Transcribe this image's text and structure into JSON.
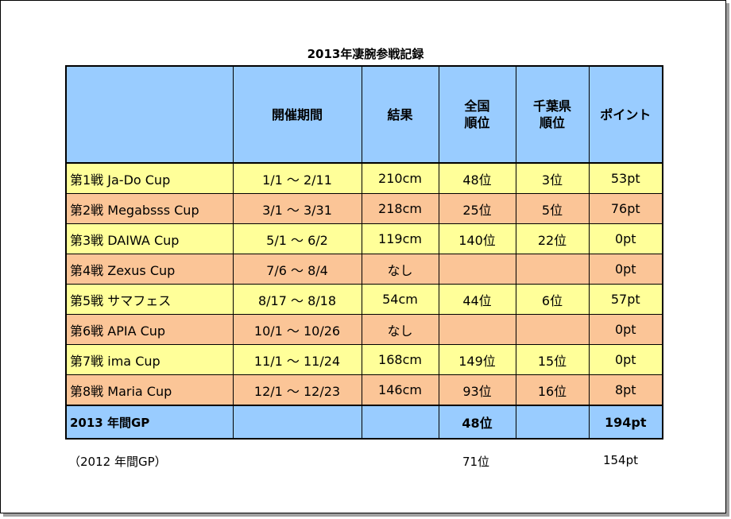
{
  "title": "2013年凄腕参戦記録",
  "header": {
    "blank": "",
    "period": "開催期間",
    "result": "結果",
    "national_rank_1": "全国",
    "national_rank_2": "順位",
    "chiba_rank_1": "千葉県",
    "chiba_rank_2": "順位",
    "points": "ポイント"
  },
  "rows": [
    {
      "name": "第1戦 Ja-Do Cup",
      "period": "1/1 ～ 2/11",
      "result": "210cm",
      "national": "48位",
      "chiba": "3位",
      "points": "53pt",
      "color": "#ffff99"
    },
    {
      "name": "第2戦 Megabsss Cup",
      "period": "3/1 ～ 3/31",
      "result": "218cm",
      "national": "25位",
      "chiba": "5位",
      "points": "76pt",
      "color": "#fbc597"
    },
    {
      "name": "第3戦 DAIWA Cup",
      "period": "5/1 ～ 6/2",
      "result": "119cm",
      "national": "140位",
      "chiba": "22位",
      "points": "0pt",
      "color": "#ffff99"
    },
    {
      "name": "第4戦 Zexus Cup",
      "period": "7/6 ～ 8/4",
      "result": "なし",
      "national": "",
      "chiba": "",
      "points": "0pt",
      "color": "#fbc597"
    },
    {
      "name": "第5戦 サマフェス",
      "period": "8/17 ～ 8/18",
      "result": "54cm",
      "national": "44位",
      "chiba": "6位",
      "points": "57pt",
      "color": "#ffff99"
    },
    {
      "name": "第6戦 APIA Cup",
      "period": "10/1 ～ 10/26",
      "result": "なし",
      "national": "",
      "chiba": "",
      "points": "0pt",
      "color": "#fbc597"
    },
    {
      "name": "第7戦 ima Cup",
      "period": "11/1 ～ 11/24",
      "result": "168cm",
      "national": "149位",
      "chiba": "15位",
      "points": "0pt",
      "color": "#ffff99"
    },
    {
      "name": "第8戦 Maria Cup",
      "period": "12/1 ～ 12/23",
      "result": "146cm",
      "national": "93位",
      "chiba": "16位",
      "points": "8pt",
      "color": "#fbc597"
    }
  ],
  "total": {
    "name": "2013 年間GP",
    "period": "",
    "result": "",
    "national": "48位",
    "chiba": "",
    "points": "194pt"
  },
  "previous": {
    "name": "（2012 年間GP）",
    "national": "71位",
    "points": "154pt"
  }
}
